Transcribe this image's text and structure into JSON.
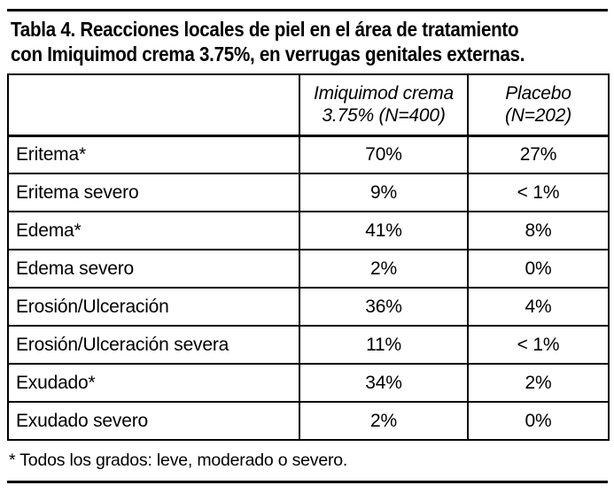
{
  "colors": {
    "background": "#ffffff",
    "text": "#000000",
    "border": "#000000"
  },
  "title": {
    "line1": "Tabla 4. Reacciones locales de piel en el área de tratamiento",
    "line2": "con Imiquimod crema 3.75%, en verrugas genitales externas."
  },
  "table": {
    "header": {
      "reaction_col": "",
      "treatment_col": {
        "line1": "Imiquimod crema",
        "line2": "3.75% (N=400)"
      },
      "placebo_col": {
        "line1": "Placebo",
        "line2": "(N=202)"
      }
    },
    "rows": [
      {
        "label": "Eritema*",
        "imiquimod": "70%",
        "placebo": "27%"
      },
      {
        "label": "Eritema severo",
        "imiquimod": "9%",
        "placebo": "< 1%"
      },
      {
        "label": "Edema*",
        "imiquimod": "41%",
        "placebo": "8%"
      },
      {
        "label": "Edema severo",
        "imiquimod": "2%",
        "placebo": "0%"
      },
      {
        "label": "Erosión/Ulceración",
        "imiquimod": "36%",
        "placebo": "4%"
      },
      {
        "label": "Erosión/Ulceración severa",
        "imiquimod": "11%",
        "placebo": "< 1%"
      },
      {
        "label": "Exudado*",
        "imiquimod": "34%",
        "placebo": "2%"
      },
      {
        "label": "Exudado severo",
        "imiquimod": "2%",
        "placebo": "0%"
      }
    ]
  },
  "footnote": "* Todos los grados: leve, moderado o severo."
}
